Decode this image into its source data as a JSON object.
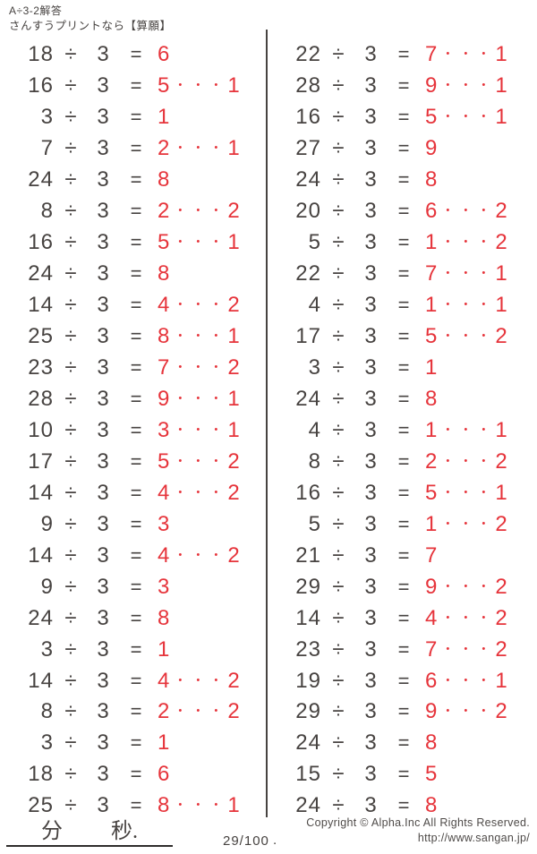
{
  "header": {
    "title": "A÷3-2解答",
    "subtitle": "さんすうプリントなら【算願】"
  },
  "colors": {
    "text": "#474341",
    "answer_red": "#e6343b"
  },
  "symbols": {
    "divide": "÷",
    "equals": "=",
    "remainder_dots": "・・・"
  },
  "problems": {
    "left": [
      {
        "dividend": "18",
        "divisor": "3",
        "quotient": "6",
        "remainder": null
      },
      {
        "dividend": "16",
        "divisor": "3",
        "quotient": "5",
        "remainder": "1"
      },
      {
        "dividend": "3",
        "divisor": "3",
        "quotient": "1",
        "remainder": null
      },
      {
        "dividend": "7",
        "divisor": "3",
        "quotient": "2",
        "remainder": "1"
      },
      {
        "dividend": "24",
        "divisor": "3",
        "quotient": "8",
        "remainder": null
      },
      {
        "dividend": "8",
        "divisor": "3",
        "quotient": "2",
        "remainder": "2"
      },
      {
        "dividend": "16",
        "divisor": "3",
        "quotient": "5",
        "remainder": "1"
      },
      {
        "dividend": "24",
        "divisor": "3",
        "quotient": "8",
        "remainder": null
      },
      {
        "dividend": "14",
        "divisor": "3",
        "quotient": "4",
        "remainder": "2"
      },
      {
        "dividend": "25",
        "divisor": "3",
        "quotient": "8",
        "remainder": "1"
      },
      {
        "dividend": "23",
        "divisor": "3",
        "quotient": "7",
        "remainder": "2"
      },
      {
        "dividend": "28",
        "divisor": "3",
        "quotient": "9",
        "remainder": "1"
      },
      {
        "dividend": "10",
        "divisor": "3",
        "quotient": "3",
        "remainder": "1"
      },
      {
        "dividend": "17",
        "divisor": "3",
        "quotient": "5",
        "remainder": "2"
      },
      {
        "dividend": "14",
        "divisor": "3",
        "quotient": "4",
        "remainder": "2"
      },
      {
        "dividend": "9",
        "divisor": "3",
        "quotient": "3",
        "remainder": null
      },
      {
        "dividend": "14",
        "divisor": "3",
        "quotient": "4",
        "remainder": "2"
      },
      {
        "dividend": "9",
        "divisor": "3",
        "quotient": "3",
        "remainder": null
      },
      {
        "dividend": "24",
        "divisor": "3",
        "quotient": "8",
        "remainder": null
      },
      {
        "dividend": "3",
        "divisor": "3",
        "quotient": "1",
        "remainder": null
      },
      {
        "dividend": "14",
        "divisor": "3",
        "quotient": "4",
        "remainder": "2"
      },
      {
        "dividend": "8",
        "divisor": "3",
        "quotient": "2",
        "remainder": "2"
      },
      {
        "dividend": "3",
        "divisor": "3",
        "quotient": "1",
        "remainder": null
      },
      {
        "dividend": "18",
        "divisor": "3",
        "quotient": "6",
        "remainder": null
      },
      {
        "dividend": "25",
        "divisor": "3",
        "quotient": "8",
        "remainder": "1"
      }
    ],
    "right": [
      {
        "dividend": "22",
        "divisor": "3",
        "quotient": "7",
        "remainder": "1"
      },
      {
        "dividend": "28",
        "divisor": "3",
        "quotient": "9",
        "remainder": "1"
      },
      {
        "dividend": "16",
        "divisor": "3",
        "quotient": "5",
        "remainder": "1"
      },
      {
        "dividend": "27",
        "divisor": "3",
        "quotient": "9",
        "remainder": null
      },
      {
        "dividend": "24",
        "divisor": "3",
        "quotient": "8",
        "remainder": null
      },
      {
        "dividend": "20",
        "divisor": "3",
        "quotient": "6",
        "remainder": "2"
      },
      {
        "dividend": "5",
        "divisor": "3",
        "quotient": "1",
        "remainder": "2"
      },
      {
        "dividend": "22",
        "divisor": "3",
        "quotient": "7",
        "remainder": "1"
      },
      {
        "dividend": "4",
        "divisor": "3",
        "quotient": "1",
        "remainder": "1"
      },
      {
        "dividend": "17",
        "divisor": "3",
        "quotient": "5",
        "remainder": "2"
      },
      {
        "dividend": "3",
        "divisor": "3",
        "quotient": "1",
        "remainder": null
      },
      {
        "dividend": "24",
        "divisor": "3",
        "quotient": "8",
        "remainder": null
      },
      {
        "dividend": "4",
        "divisor": "3",
        "quotient": "1",
        "remainder": "1"
      },
      {
        "dividend": "8",
        "divisor": "3",
        "quotient": "2",
        "remainder": "2"
      },
      {
        "dividend": "16",
        "divisor": "3",
        "quotient": "5",
        "remainder": "1"
      },
      {
        "dividend": "5",
        "divisor": "3",
        "quotient": "1",
        "remainder": "2"
      },
      {
        "dividend": "21",
        "divisor": "3",
        "quotient": "7",
        "remainder": null
      },
      {
        "dividend": "29",
        "divisor": "3",
        "quotient": "9",
        "remainder": "2"
      },
      {
        "dividend": "14",
        "divisor": "3",
        "quotient": "4",
        "remainder": "2"
      },
      {
        "dividend": "23",
        "divisor": "3",
        "quotient": "7",
        "remainder": "2"
      },
      {
        "dividend": "19",
        "divisor": "3",
        "quotient": "6",
        "remainder": "1"
      },
      {
        "dividend": "29",
        "divisor": "3",
        "quotient": "9",
        "remainder": "2"
      },
      {
        "dividend": "24",
        "divisor": "3",
        "quotient": "8",
        "remainder": null
      },
      {
        "dividend": "15",
        "divisor": "3",
        "quotient": "5",
        "remainder": null
      },
      {
        "dividend": "24",
        "divisor": "3",
        "quotient": "8",
        "remainder": null
      }
    ]
  },
  "footer": {
    "minutes_label": "分",
    "seconds_label": "秒.",
    "page": "29/100",
    "page_dot": ".",
    "copyright_line1": "Copyright ©  Alpha.Inc All Rights Reserved.",
    "copyright_line2": "http://www.sangan.jp/"
  }
}
